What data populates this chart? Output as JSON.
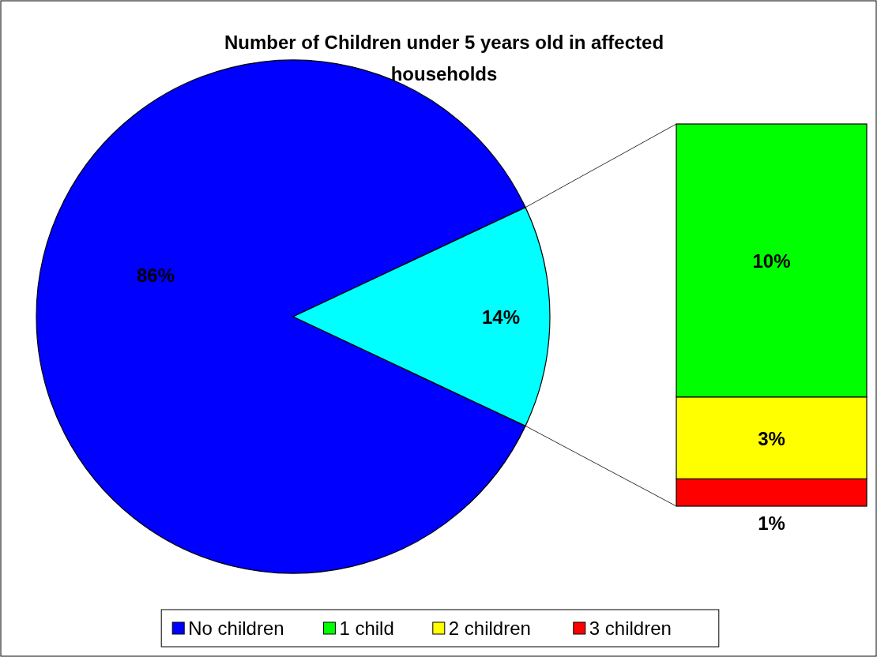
{
  "chart_data": [
    {
      "type": "pie",
      "title": "Number of Children under 5 years old in affected households",
      "categories": [
        "No children",
        null
      ],
      "values": [
        86,
        14
      ],
      "colors": [
        "#0000ff",
        "#00ffff"
      ],
      "value_labels": [
        "86%",
        "14%"
      ],
      "legend": "bottom"
    },
    {
      "type": "bar",
      "stacked": true,
      "categories": [
        null
      ],
      "legend": "bottom",
      "series": [
        {
          "name": "3 children",
          "color": "#ff0000",
          "values": [
            1
          ],
          "value_labels": [
            "1%"
          ]
        },
        {
          "name": "2 children",
          "color": "#ffff00",
          "values": [
            3
          ],
          "value_labels": [
            "3%"
          ]
        },
        {
          "name": "1 child",
          "color": "#00ff00",
          "values": [
            10
          ],
          "value_labels": [
            "10%"
          ]
        }
      ]
    }
  ]
}
